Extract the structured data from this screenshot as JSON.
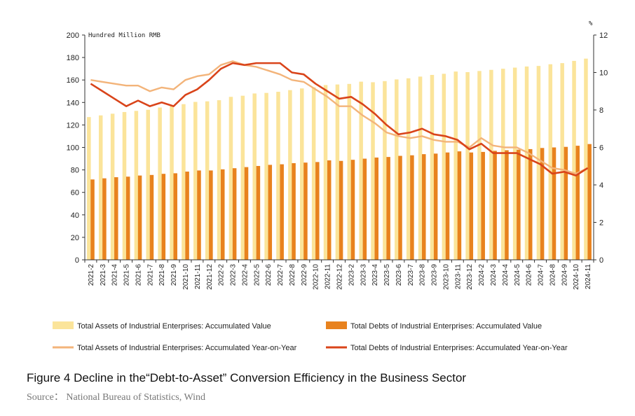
{
  "figure": {
    "caption": "Figure 4 Decline in the“Debt-to-Asset” Conversion Efficiency in the Business Sector",
    "source": "Source： National Bureau of Statistics, Wind"
  },
  "chart_data": {
    "type": "bar",
    "left_unit": "Hundred Million RMB",
    "right_unit": "%",
    "yleft_lim": [
      0,
      200
    ],
    "yleft_ticks": [
      0,
      20,
      40,
      60,
      80,
      100,
      120,
      140,
      160,
      180,
      200
    ],
    "yright_lim": [
      0,
      12
    ],
    "yright_ticks": [
      0,
      2,
      4,
      6,
      8,
      10,
      12
    ],
    "categories": [
      "2021-2",
      "2021-3",
      "2021-4",
      "2021-5",
      "2021-6",
      "2021-7",
      "2021-8",
      "2021-9",
      "2021-10",
      "2021-11",
      "2021-12",
      "2022-2",
      "2022-3",
      "2022-4",
      "2022-5",
      "2022-6",
      "2022-7",
      "2022-8",
      "2022-9",
      "2022-10",
      "2022-11",
      "2022-12",
      "2023-2",
      "2023-3",
      "2023-4",
      "2023-5",
      "2023-6",
      "2023-7",
      "2023-8",
      "2023-9",
      "2023-10",
      "2023-11",
      "2023-12",
      "2024-2",
      "2024-3",
      "2024-4",
      "2024-5",
      "2024-6",
      "2024-7",
      "2024-8",
      "2024-9",
      "2024-10",
      "2024-11"
    ],
    "series": [
      {
        "name": "Total Assets of Industrial Enterprises: Accumulated Value",
        "type": "bar",
        "axis": "left",
        "color": "#fbe49a",
        "values": [
          127,
          128.5,
          130,
          131.5,
          132.5,
          133.5,
          135.5,
          137,
          138.5,
          140.5,
          141,
          142,
          145,
          146,
          148,
          148.5,
          149.5,
          151,
          152.5,
          153.5,
          155.5,
          156,
          156.5,
          158.5,
          158,
          159,
          160.5,
          161.5,
          163,
          164.5,
          165.5,
          167.5,
          167,
          168,
          169,
          170,
          171,
          172,
          172.5,
          174,
          175,
          177,
          179
        ]
      },
      {
        "name": "Total Debts of Industrial Enterprises: Accumulated Value",
        "type": "bar",
        "axis": "left",
        "color": "#e8821e",
        "values": [
          71.5,
          72.5,
          73.5,
          74,
          75,
          75.5,
          76.5,
          77,
          78.5,
          79.5,
          79.5,
          80.5,
          81.5,
          82.5,
          83.5,
          84.5,
          85,
          86,
          86.5,
          87,
          88.5,
          88,
          89,
          90,
          91,
          91.5,
          92.5,
          93,
          94,
          94.5,
          95.5,
          96.5,
          95.5,
          96,
          97,
          97.5,
          98,
          98.5,
          99.5,
          100,
          100.5,
          101.5,
          103
        ]
      },
      {
        "name": "Total Assets of Industrial Enterprises: Accumulated Year-on-Year",
        "type": "line",
        "axis": "right",
        "color": "#f3b47a",
        "values": [
          9.6,
          9.5,
          9.4,
          9.3,
          9.3,
          9.0,
          9.2,
          9.1,
          9.6,
          9.8,
          9.9,
          10.4,
          10.6,
          10.4,
          10.3,
          10.1,
          9.9,
          9.6,
          9.5,
          9.1,
          8.7,
          8.2,
          8.2,
          7.7,
          7.3,
          6.8,
          6.6,
          6.5,
          6.6,
          6.4,
          6.3,
          6.3,
          6.0,
          6.5,
          6.1,
          6.0,
          6.0,
          5.7,
          5.3,
          4.9,
          4.8,
          4.6,
          4.9
        ]
      },
      {
        "name": "Total Debts of Industrial Enterprises: Accumulated Year-on-Year",
        "type": "line",
        "axis": "right",
        "color": "#d9441a",
        "values": [
          9.4,
          9.0,
          8.6,
          8.2,
          8.5,
          8.2,
          8.4,
          8.2,
          8.8,
          9.1,
          9.6,
          10.2,
          10.5,
          10.4,
          10.5,
          10.5,
          10.5,
          10.0,
          9.9,
          9.4,
          9.0,
          8.6,
          8.7,
          8.3,
          7.8,
          7.2,
          6.7,
          6.8,
          7.0,
          6.7,
          6.6,
          6.4,
          5.9,
          6.2,
          5.7,
          5.7,
          5.7,
          5.4,
          5.1,
          4.6,
          4.7,
          4.5,
          4.9
        ]
      }
    ]
  }
}
